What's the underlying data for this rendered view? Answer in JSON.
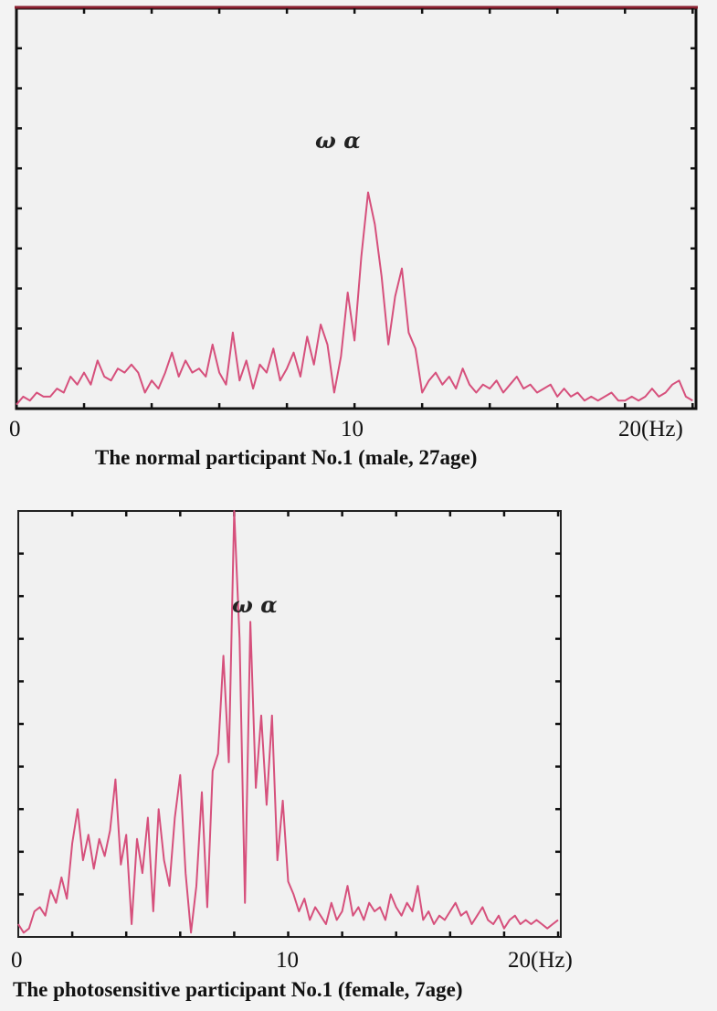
{
  "chart_data": [
    {
      "type": "line",
      "title": "The normal participant No.1 (male, 27age)",
      "xlabel": "",
      "ylabel": "",
      "x_tick_labels": [
        "0",
        "10",
        "20(Hz)"
      ],
      "x_ticks": [
        0,
        10,
        20
      ],
      "xlim": [
        0,
        20.1
      ],
      "ylim": [
        0,
        10
      ],
      "grid": false,
      "annotation": "ω α",
      "line_color": "#d6507c",
      "x": [
        0,
        0.2,
        0.4,
        0.6,
        0.8,
        1,
        1.2,
        1.4,
        1.6,
        1.8,
        2,
        2.2,
        2.4,
        2.6,
        2.8,
        3,
        3.2,
        3.4,
        3.6,
        3.8,
        4,
        4.2,
        4.4,
        4.6,
        4.8,
        5,
        5.2,
        5.4,
        5.6,
        5.8,
        6,
        6.2,
        6.4,
        6.6,
        6.8,
        7,
        7.2,
        7.4,
        7.6,
        7.8,
        8,
        8.2,
        8.4,
        8.6,
        8.8,
        9,
        9.2,
        9.4,
        9.6,
        9.8,
        10,
        10.2,
        10.4,
        10.6,
        10.8,
        11,
        11.2,
        11.4,
        11.6,
        11.8,
        12,
        12.2,
        12.4,
        12.6,
        12.8,
        13,
        13.2,
        13.4,
        13.6,
        13.8,
        14,
        14.2,
        14.4,
        14.6,
        14.8,
        15,
        15.2,
        15.4,
        15.6,
        15.8,
        16,
        16.2,
        16.4,
        16.6,
        16.8,
        17,
        17.2,
        17.4,
        17.6,
        17.8,
        18,
        18.2,
        18.4,
        18.6,
        18.8,
        19,
        19.2,
        19.4,
        19.6,
        19.8,
        20
      ],
      "values": [
        0.1,
        0.3,
        0.2,
        0.4,
        0.3,
        0.3,
        0.5,
        0.4,
        0.8,
        0.6,
        0.9,
        0.6,
        1.2,
        0.8,
        0.7,
        1.0,
        0.9,
        1.1,
        0.9,
        0.4,
        0.7,
        0.5,
        0.9,
        1.4,
        0.8,
        1.2,
        0.9,
        1.0,
        0.8,
        1.6,
        0.9,
        0.6,
        1.9,
        0.7,
        1.2,
        0.5,
        1.1,
        0.9,
        1.5,
        0.7,
        1.0,
        1.4,
        0.8,
        1.8,
        1.1,
        2.1,
        1.6,
        0.4,
        1.3,
        2.9,
        1.7,
        3.8,
        5.4,
        4.6,
        3.3,
        1.6,
        2.8,
        3.5,
        1.9,
        1.5,
        0.4,
        0.7,
        0.9,
        0.6,
        0.8,
        0.5,
        1.0,
        0.6,
        0.4,
        0.6,
        0.5,
        0.7,
        0.4,
        0.6,
        0.8,
        0.5,
        0.6,
        0.4,
        0.5,
        0.6,
        0.3,
        0.5,
        0.3,
        0.4,
        0.2,
        0.3,
        0.2,
        0.3,
        0.4,
        0.2,
        0.2,
        0.3,
        0.2,
        0.3,
        0.5,
        0.3,
        0.4,
        0.6,
        0.7,
        0.3,
        0.2
      ]
    },
    {
      "type": "line",
      "title": "The photosensitive participant No.1 (female, 7age)",
      "xlabel": "",
      "ylabel": "",
      "x_tick_labels": [
        "0",
        "10",
        "20(Hz)"
      ],
      "x_ticks": [
        0,
        10,
        20
      ],
      "xlim": [
        0,
        20.1
      ],
      "ylim": [
        0,
        10
      ],
      "grid": false,
      "annotation": "ω α",
      "line_color": "#d6507c",
      "x": [
        0,
        0.2,
        0.4,
        0.6,
        0.8,
        1,
        1.2,
        1.4,
        1.6,
        1.8,
        2,
        2.2,
        2.4,
        2.6,
        2.8,
        3,
        3.2,
        3.4,
        3.6,
        3.8,
        4,
        4.2,
        4.4,
        4.6,
        4.8,
        5,
        5.2,
        5.4,
        5.6,
        5.8,
        6,
        6.2,
        6.4,
        6.6,
        6.8,
        7,
        7.2,
        7.4,
        7.6,
        7.8,
        8,
        8.2,
        8.4,
        8.6,
        8.8,
        9,
        9.2,
        9.4,
        9.6,
        9.8,
        10,
        10.2,
        10.4,
        10.6,
        10.8,
        11,
        11.2,
        11.4,
        11.6,
        11.8,
        12,
        12.2,
        12.4,
        12.6,
        12.8,
        13,
        13.2,
        13.4,
        13.6,
        13.8,
        14,
        14.2,
        14.4,
        14.6,
        14.8,
        15,
        15.2,
        15.4,
        15.6,
        15.8,
        16,
        16.2,
        16.4,
        16.6,
        16.8,
        17,
        17.2,
        17.4,
        17.6,
        17.8,
        18,
        18.2,
        18.4,
        18.6,
        18.8,
        19,
        19.2,
        19.4,
        19.6,
        19.8,
        20
      ],
      "values": [
        0.3,
        0.1,
        0.2,
        0.6,
        0.7,
        0.5,
        1.1,
        0.8,
        1.4,
        0.9,
        2.2,
        3.0,
        1.8,
        2.4,
        1.6,
        2.3,
        1.9,
        2.5,
        3.7,
        1.7,
        2.4,
        0.3,
        2.3,
        1.5,
        2.8,
        0.6,
        3.0,
        1.8,
        1.2,
        2.8,
        3.8,
        1.5,
        0.1,
        1.2,
        3.4,
        0.7,
        3.9,
        4.3,
        6.6,
        4.1,
        10.0,
        7.0,
        0.8,
        7.4,
        3.5,
        5.2,
        3.1,
        5.2,
        1.8,
        3.2,
        1.3,
        1.0,
        0.6,
        0.9,
        0.4,
        0.7,
        0.5,
        0.3,
        0.8,
        0.4,
        0.6,
        1.2,
        0.5,
        0.7,
        0.4,
        0.8,
        0.6,
        0.7,
        0.4,
        1.0,
        0.7,
        0.5,
        0.8,
        0.6,
        1.2,
        0.4,
        0.6,
        0.3,
        0.5,
        0.4,
        0.6,
        0.8,
        0.5,
        0.6,
        0.3,
        0.5,
        0.7,
        0.4,
        0.3,
        0.5,
        0.2,
        0.4,
        0.5,
        0.3,
        0.4,
        0.3,
        0.4,
        0.3,
        0.2,
        0.3,
        0.4
      ]
    }
  ]
}
